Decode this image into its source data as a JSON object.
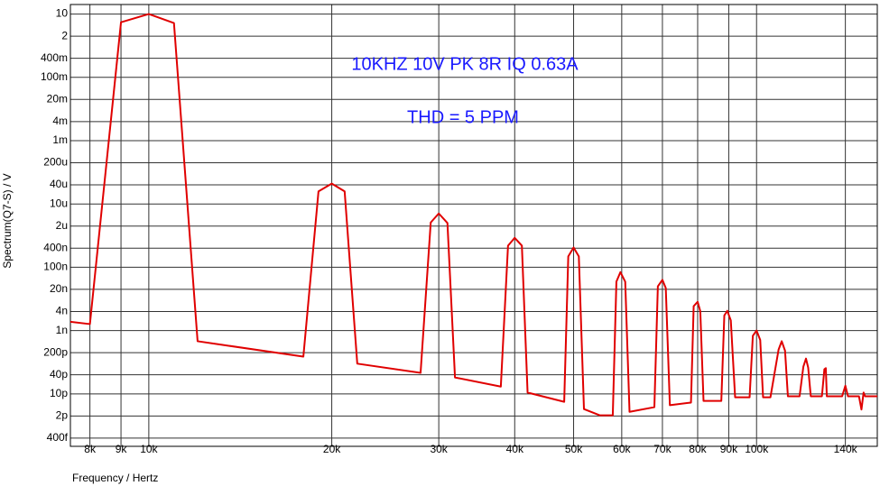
{
  "chart_data": {
    "type": "line",
    "annotations": [
      "10KHZ 10V PK 8R IQ 0.63A",
      "THD = 5 PPM"
    ],
    "x_label": "Frequency / Hertz",
    "y_label": "Spectrum(Q7-S) / V",
    "x_scale": "log",
    "y_scale": "log",
    "grid": true,
    "xlim": [
      7430,
      158000
    ],
    "ylim": [
      2.2e-13,
      20
    ],
    "xticks": [
      {
        "value": 8000,
        "label": "8k"
      },
      {
        "value": 9000,
        "label": "9k"
      },
      {
        "value": 10000,
        "label": "10k"
      },
      {
        "value": 20000,
        "label": "20k"
      },
      {
        "value": 30000,
        "label": "30k"
      },
      {
        "value": 40000,
        "label": "40k"
      },
      {
        "value": 50000,
        "label": "50k"
      },
      {
        "value": 60000,
        "label": "60k"
      },
      {
        "value": 70000,
        "label": "70k"
      },
      {
        "value": 80000,
        "label": "80k"
      },
      {
        "value": 90000,
        "label": "90k"
      },
      {
        "value": 100000,
        "label": "100k"
      },
      {
        "value": 140000,
        "label": "140k"
      }
    ],
    "yticks": [
      10,
      2,
      {
        "value": 0.4,
        "label": "400m"
      },
      {
        "value": 0.1,
        "label": "100m"
      },
      {
        "value": 0.02,
        "label": "20m"
      },
      {
        "value": 0.004,
        "label": "4m"
      },
      {
        "value": 0.001,
        "label": "1m"
      },
      {
        "value": 0.0002,
        "label": "200u"
      },
      {
        "value": 4e-05,
        "label": "40u"
      },
      {
        "value": 1e-05,
        "label": "10u"
      },
      {
        "value": 2e-06,
        "label": "2u"
      },
      {
        "value": 4e-07,
        "label": "400n"
      },
      {
        "value": 1e-07,
        "label": "100n"
      },
      {
        "value": 2e-08,
        "label": "20n"
      },
      {
        "value": 4e-09,
        "label": "4n"
      },
      {
        "value": 1e-09,
        "label": "1n"
      },
      {
        "value": 2e-10,
        "label": "200p"
      },
      {
        "value": 4e-11,
        "label": "40p"
      },
      {
        "value": 1e-11,
        "label": "10p"
      },
      {
        "value": 2e-12,
        "label": "2p"
      },
      {
        "value": 4e-13,
        "label": "400f"
      }
    ],
    "series": [
      {
        "name": "Spectrum(Q7-S)",
        "color": "#e00000",
        "x": [
          7430,
          8000,
          9000,
          10000,
          11000,
          12030,
          17960,
          19020,
          20000,
          21000,
          22030,
          28000,
          29100,
          30000,
          31000,
          31900,
          37950,
          39000,
          40000,
          41100,
          42000,
          48250,
          49000,
          50000,
          51000,
          52000,
          55200,
          58000,
          58800,
          59700,
          60800,
          61800,
          67900,
          68800,
          70000,
          70900,
          72000,
          78000,
          78800,
          80000,
          80800,
          81800,
          87500,
          88500,
          89500,
          90700,
          92200,
          97400,
          98600,
          100000,
          101400,
          102500,
          105400,
          108700,
          110000,
          111400,
          112600,
          117700,
          119400,
          120600,
          121600,
          122800,
          128100,
          129300,
          130000,
          130500,
          138300,
          140000,
          141400,
          147400,
          148800,
          150000,
          150900,
          158000
        ],
        "values": [
          1.9e-09,
          1.6e-09,
          5.5,
          10,
          5.2,
          4.6e-10,
          1.5e-10,
          2.5e-05,
          4.4e-05,
          2.5e-05,
          9e-11,
          4.6e-11,
          2.6e-06,
          5e-06,
          2.5e-06,
          3.3e-11,
          1.7e-11,
          4.8e-07,
          8.5e-07,
          4.8e-07,
          1.1e-11,
          5.6e-12,
          2.2e-07,
          4.2e-07,
          2.2e-07,
          3.3e-12,
          2.1e-12,
          2.1e-12,
          3.5e-08,
          7e-08,
          3.5e-08,
          2.7e-12,
          3.8e-12,
          2.5e-08,
          4e-08,
          2.2e-08,
          4.4e-12,
          5.3e-12,
          5.9e-09,
          8.1e-09,
          4.1e-09,
          6e-12,
          6e-12,
          3e-09,
          4.2e-09,
          2.1e-09,
          7.8e-12,
          7.8e-12,
          6.8e-10,
          1e-09,
          5e-10,
          7.8e-12,
          7.8e-12,
          2.5e-10,
          4.6e-10,
          2.3e-10,
          8.4e-12,
          8.4e-12,
          7.2e-11,
          1.3e-10,
          6.8e-11,
          8.4e-12,
          8.4e-12,
          6e-11,
          6.5e-11,
          8.4e-12,
          8.4e-12,
          1.8e-11,
          8.4e-12,
          8.4e-12,
          3.2e-12,
          1.1e-11,
          8.4e-12,
          8.4e-12
        ]
      }
    ]
  }
}
